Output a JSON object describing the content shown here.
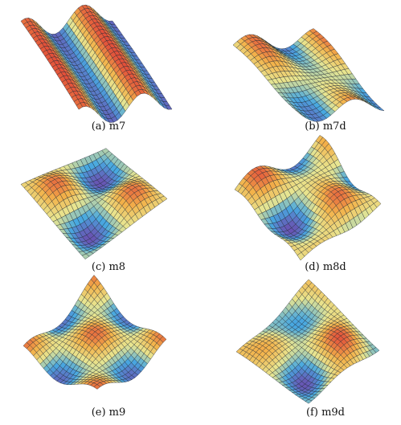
{
  "figure": {
    "panels": [
      {
        "id": "m7",
        "caption": "(a) m7"
      },
      {
        "id": "m7d",
        "caption": "(b) m7d"
      },
      {
        "id": "m8",
        "caption": "(c) m8"
      },
      {
        "id": "m8d",
        "caption": "(d) m8d"
      },
      {
        "id": "m9",
        "caption": "(e) m9"
      },
      {
        "id": "m9d",
        "caption": "(f) m9d"
      }
    ]
  },
  "colors": {
    "low": "#6a4fb0",
    "mid_low": "#48a8e0",
    "mid": "#e8e590",
    "mid_high": "#f3b24a",
    "high": "#e2503a",
    "mesh": "#1d2530"
  }
}
